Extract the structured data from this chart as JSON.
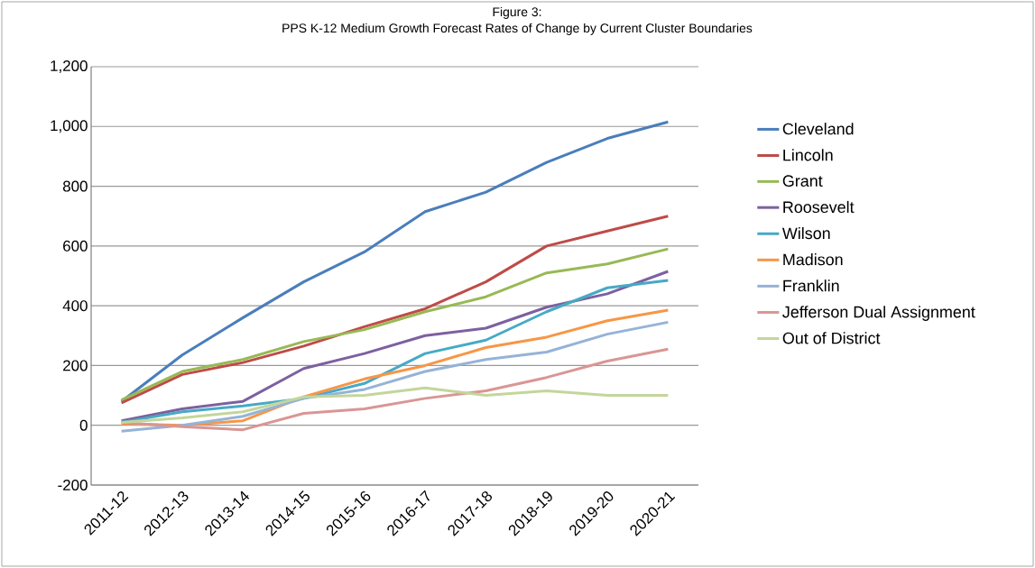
{
  "chart_data": {
    "type": "line",
    "title": "Figure 3:",
    "subtitle": "PPS K-12 Medium Growth Forecast Rates of Change by Current Cluster Boundaries",
    "categories": [
      "2011-12",
      "2012-13",
      "2013-14",
      "2014-15",
      "2015-16",
      "2016-17",
      "2017-18",
      "2018-19",
      "2019-20",
      "2020-21"
    ],
    "series": [
      {
        "name": "Cleveland",
        "color": "#4a7ebb",
        "values": [
          80,
          235,
          360,
          480,
          580,
          715,
          780,
          880,
          960,
          1015
        ]
      },
      {
        "name": "Lincoln",
        "color": "#be4b48",
        "values": [
          75,
          170,
          210,
          265,
          330,
          390,
          480,
          600,
          650,
          700
        ]
      },
      {
        "name": "Grant",
        "color": "#98b954",
        "values": [
          85,
          180,
          220,
          280,
          320,
          380,
          430,
          510,
          540,
          590
        ]
      },
      {
        "name": "Roosevelt",
        "color": "#7d60a0",
        "values": [
          15,
          55,
          80,
          190,
          240,
          300,
          325,
          395,
          440,
          515
        ]
      },
      {
        "name": "Wilson",
        "color": "#46aac5",
        "values": [
          10,
          45,
          65,
          90,
          140,
          240,
          285,
          380,
          460,
          485
        ]
      },
      {
        "name": "Madison",
        "color": "#f79646",
        "values": [
          5,
          0,
          15,
          95,
          155,
          200,
          260,
          295,
          350,
          385
        ]
      },
      {
        "name": "Franklin",
        "color": "#95b3d7",
        "values": [
          -20,
          0,
          30,
          90,
          120,
          180,
          220,
          245,
          305,
          345
        ]
      },
      {
        "name": "Jefferson Dual Assignment",
        "color": "#d99694",
        "values": [
          10,
          -5,
          -15,
          40,
          55,
          90,
          115,
          160,
          215,
          255
        ]
      },
      {
        "name": "Out of District",
        "color": "#c3d69b",
        "values": [
          10,
          25,
          45,
          95,
          100,
          125,
          100,
          115,
          100,
          100
        ]
      }
    ],
    "ylim": [
      -200,
      1200
    ],
    "yticks": [
      {
        "value": -200,
        "label": "-200"
      },
      0,
      {
        "value": 200,
        "label": "200"
      },
      {
        "value": 400,
        "label": "400"
      },
      {
        "value": 600,
        "label": "600"
      },
      {
        "value": 800,
        "label": "800"
      },
      {
        "value": 1000,
        "label": "1,000"
      },
      {
        "value": 1200,
        "label": "1,200"
      }
    ],
    "grid": "y",
    "legend": "right",
    "marker": "none",
    "line_style": "solid"
  }
}
